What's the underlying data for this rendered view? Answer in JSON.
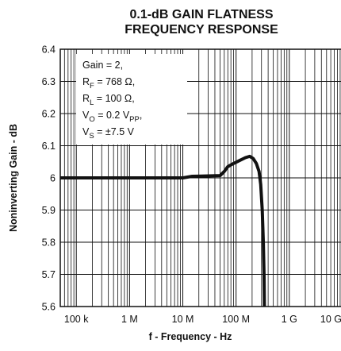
{
  "chart_data": {
    "type": "line",
    "title_lines": [
      "0.1-dB GAIN FLATNESS",
      "FREQUENCY RESPONSE"
    ],
    "xlabel": "f - Frequency - Hz",
    "ylabel": "Noninverting Gain - dB",
    "x_scale": "log",
    "xlim": [
      50000,
      10000000000
    ],
    "ylim": [
      5.6,
      6.4
    ],
    "grid": true,
    "x_ticks": [
      {
        "value": 100000,
        "label": "100 k"
      },
      {
        "value": 1000000,
        "label": "1 M"
      },
      {
        "value": 10000000,
        "label": "10 M"
      },
      {
        "value": 100000000,
        "label": "100 M"
      },
      {
        "value": 1000000000,
        "label": "1 G"
      },
      {
        "value": 10000000000,
        "label": "10 G"
      }
    ],
    "y_ticks": [
      {
        "value": 5.6,
        "label": "5.6"
      },
      {
        "value": 5.7,
        "label": "5.7"
      },
      {
        "value": 5.8,
        "label": "5.8"
      },
      {
        "value": 5.9,
        "label": "5.9"
      },
      {
        "value": 6.0,
        "label": "6"
      },
      {
        "value": 6.1,
        "label": "6.1"
      },
      {
        "value": 6.2,
        "label": "6.2"
      },
      {
        "value": 6.3,
        "label": "6.3"
      },
      {
        "value": 6.4,
        "label": "6.4"
      }
    ],
    "annotations": [
      {
        "text": "Gain = 2,"
      },
      {
        "base": "R",
        "sub": "F",
        "rest": " = 768 Ω,"
      },
      {
        "base": "R",
        "sub": "L",
        "rest": " = 100 Ω,"
      },
      {
        "base": "V",
        "sub": "O",
        "rest": " = 0.2 V",
        "sub2": "PP",
        "rest2": ","
      },
      {
        "base": "V",
        "sub": "S",
        "rest": " = ±7.5 V"
      }
    ],
    "series": [
      {
        "color": "#111111",
        "points": [
          {
            "x": 50000,
            "y": 6.0
          },
          {
            "x": 1000000,
            "y": 6.0
          },
          {
            "x": 10000000,
            "y": 6.0
          },
          {
            "x": 15000000,
            "y": 6.005
          },
          {
            "x": 50000000,
            "y": 6.007
          },
          {
            "x": 60000000,
            "y": 6.02
          },
          {
            "x": 70000000,
            "y": 6.035
          },
          {
            "x": 90000000,
            "y": 6.045
          },
          {
            "x": 120000000,
            "y": 6.055
          },
          {
            "x": 150000000,
            "y": 6.063
          },
          {
            "x": 180000000,
            "y": 6.067
          },
          {
            "x": 210000000,
            "y": 6.06
          },
          {
            "x": 240000000,
            "y": 6.045
          },
          {
            "x": 270000000,
            "y": 6.02
          },
          {
            "x": 290000000,
            "y": 5.98
          },
          {
            "x": 310000000,
            "y": 5.9
          },
          {
            "x": 325000000,
            "y": 5.8
          },
          {
            "x": 335000000,
            "y": 5.7
          },
          {
            "x": 340000000,
            "y": 5.6
          }
        ]
      }
    ]
  }
}
